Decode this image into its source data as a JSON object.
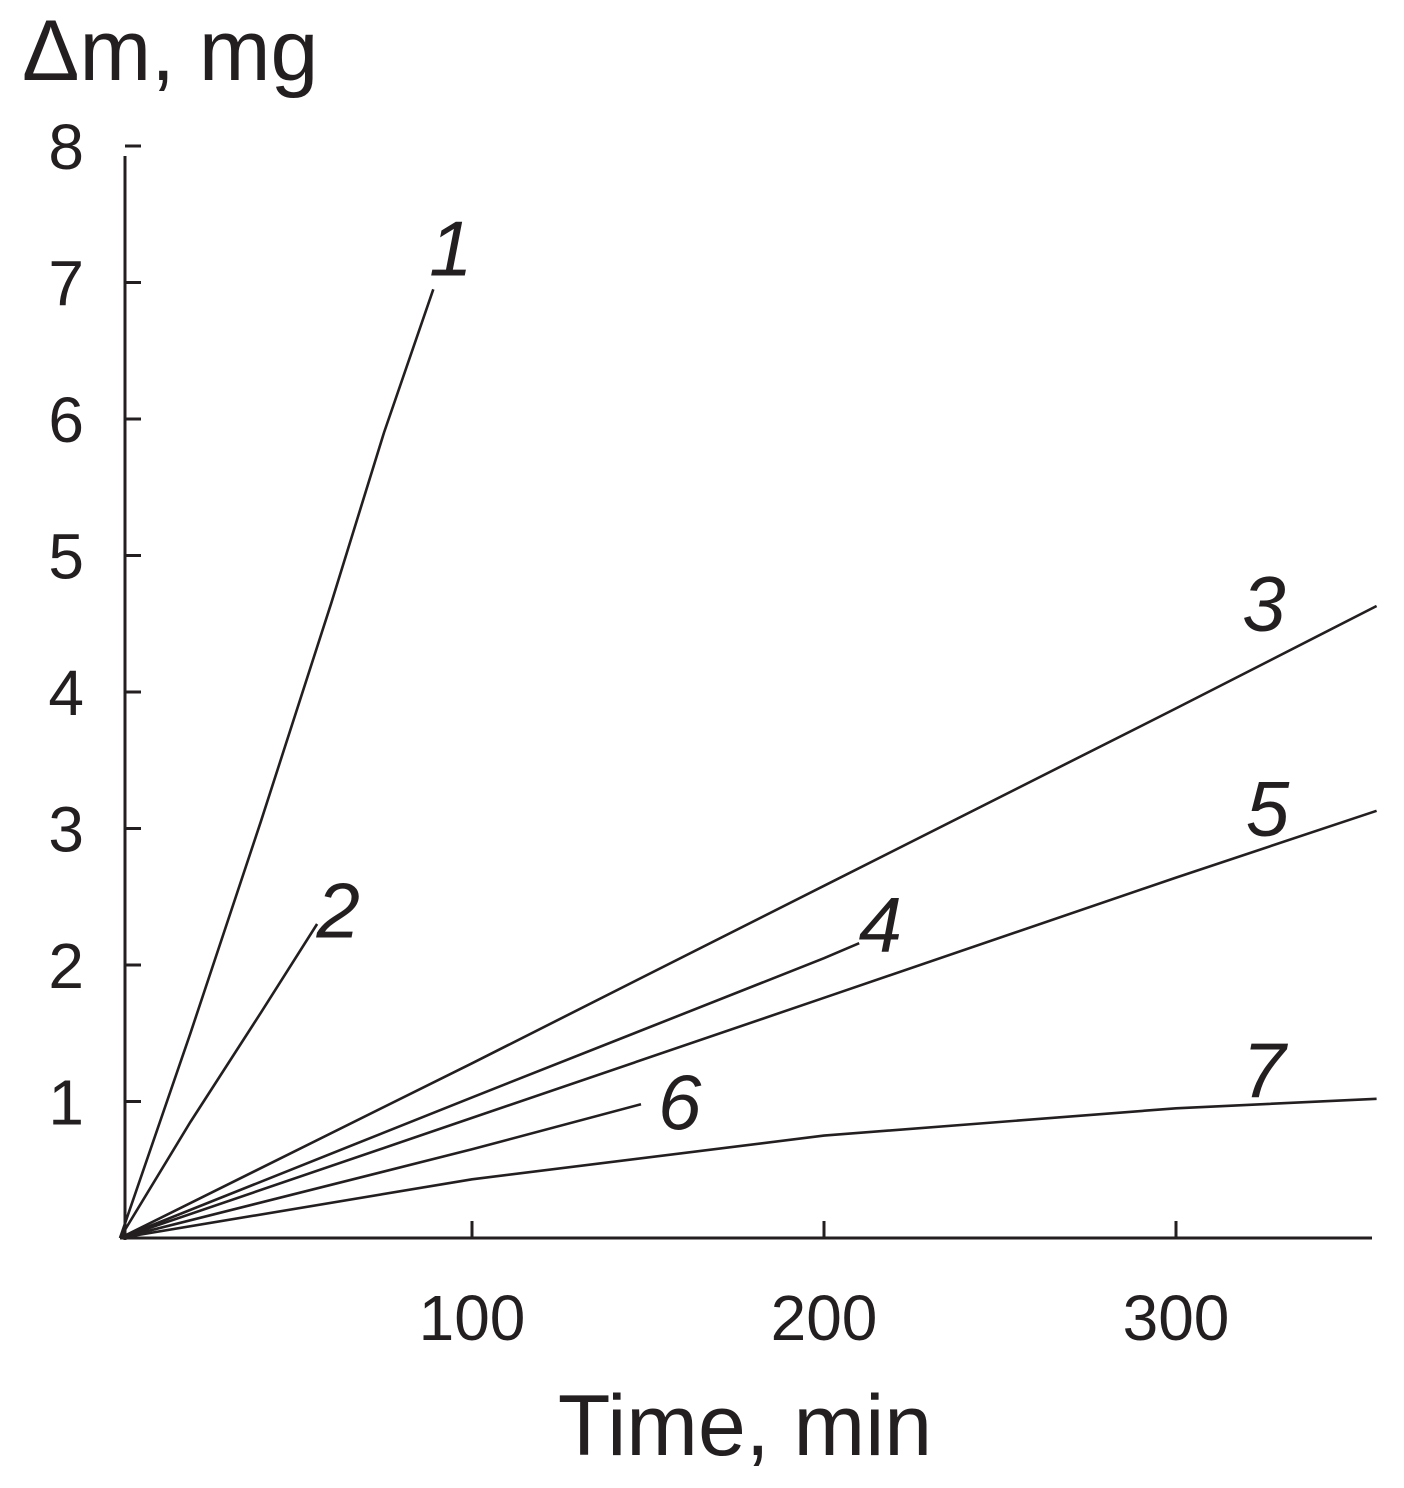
{
  "chart_data": {
    "type": "line",
    "title": "",
    "xlabel": "Time, min",
    "ylabel": "Δm, mg",
    "xlim": [
      0,
      357
    ],
    "ylim": [
      0,
      8
    ],
    "xticks": [
      100,
      200,
      300
    ],
    "yticks": [
      1,
      2,
      3,
      4,
      5,
      6,
      7,
      8
    ],
    "grid": false,
    "legend": "inline-labels",
    "series": [
      {
        "name": "1",
        "x": [
          0,
          20,
          40,
          60,
          75,
          89
        ],
        "y": [
          0,
          1.5,
          3.05,
          4.65,
          5.9,
          6.95
        ]
      },
      {
        "name": "2",
        "x": [
          0,
          20,
          40,
          56
        ],
        "y": [
          0,
          0.85,
          1.65,
          2.3
        ]
      },
      {
        "name": "3",
        "x": [
          0,
          100,
          200,
          300,
          357
        ],
        "y": [
          0,
          1.28,
          2.58,
          3.88,
          4.63
        ]
      },
      {
        "name": "4",
        "x": [
          0,
          100,
          200,
          210
        ],
        "y": [
          0,
          1.03,
          2.05,
          2.16
        ]
      },
      {
        "name": "5",
        "x": [
          0,
          100,
          200,
          300,
          357
        ],
        "y": [
          0,
          0.88,
          1.76,
          2.64,
          3.13
        ]
      },
      {
        "name": "6",
        "x": [
          0,
          100,
          148
        ],
        "y": [
          0,
          0.65,
          0.98
        ]
      },
      {
        "name": "7",
        "x": [
          0,
          100,
          200,
          300,
          357
        ],
        "y": [
          0,
          0.43,
          0.75,
          0.95,
          1.02
        ]
      }
    ],
    "series_label_positions": [
      {
        "name": "1",
        "x": 94,
        "y": 7.05
      },
      {
        "name": "2",
        "x": 62,
        "y": 2.2
      },
      {
        "name": "3",
        "x": 325,
        "y": 4.45
      },
      {
        "name": "4",
        "x": 216,
        "y": 2.1
      },
      {
        "name": "5",
        "x": 326,
        "y": 2.95
      },
      {
        "name": "6",
        "x": 159,
        "y": 0.8
      },
      {
        "name": "7",
        "x": 325,
        "y": 1.03
      }
    ],
    "colors": {
      "ink": "#231f20",
      "background": "#ffffff"
    }
  }
}
